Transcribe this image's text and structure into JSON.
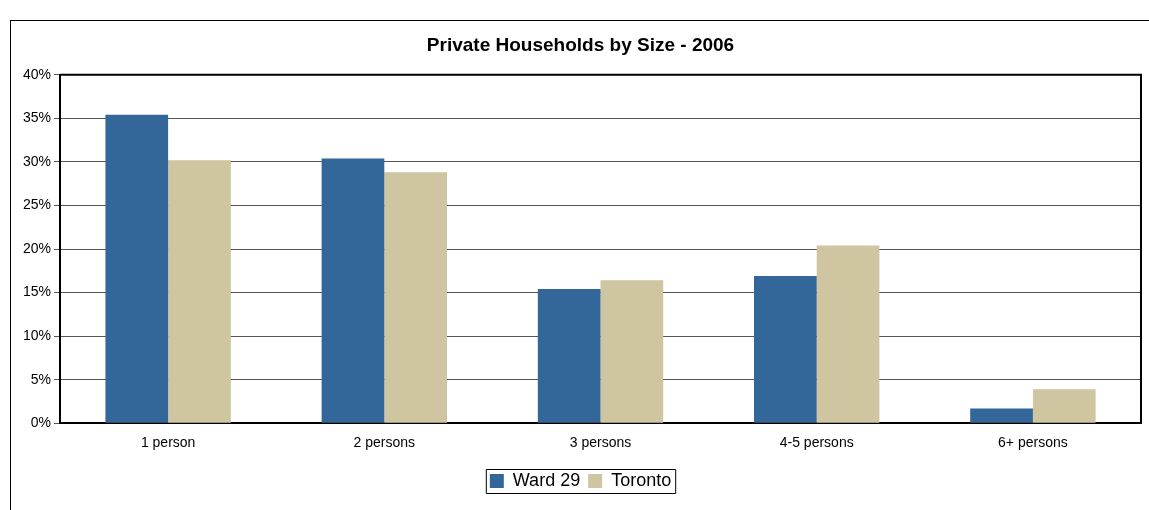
{
  "chart_data": {
    "type": "bar",
    "title": "Private Households by Size - 2006",
    "categories": [
      "1 person",
      "2 persons",
      "3 persons",
      "4-5 persons",
      "6+ persons"
    ],
    "series": [
      {
        "name": "Ward 29",
        "color": "#336699",
        "values": [
          35.4,
          30.4,
          15.4,
          16.9,
          1.7
        ]
      },
      {
        "name": "Toronto",
        "color": "#cfc5a1",
        "values": [
          30.2,
          28.8,
          16.4,
          20.4,
          3.9
        ]
      }
    ],
    "ylim": [
      0,
      40
    ],
    "yticks": [
      {
        "value": 0,
        "label": "0%"
      },
      {
        "value": 5,
        "label": "5%"
      },
      {
        "value": 10,
        "label": "10%"
      },
      {
        "value": 15,
        "label": "15%"
      },
      {
        "value": 20,
        "label": "20%"
      },
      {
        "value": 25,
        "label": "25%"
      },
      {
        "value": 30,
        "label": "30%"
      },
      {
        "value": 35,
        "label": "35%"
      },
      {
        "value": 40,
        "label": "40%"
      }
    ],
    "grid": "y",
    "legend": "bottom"
  }
}
